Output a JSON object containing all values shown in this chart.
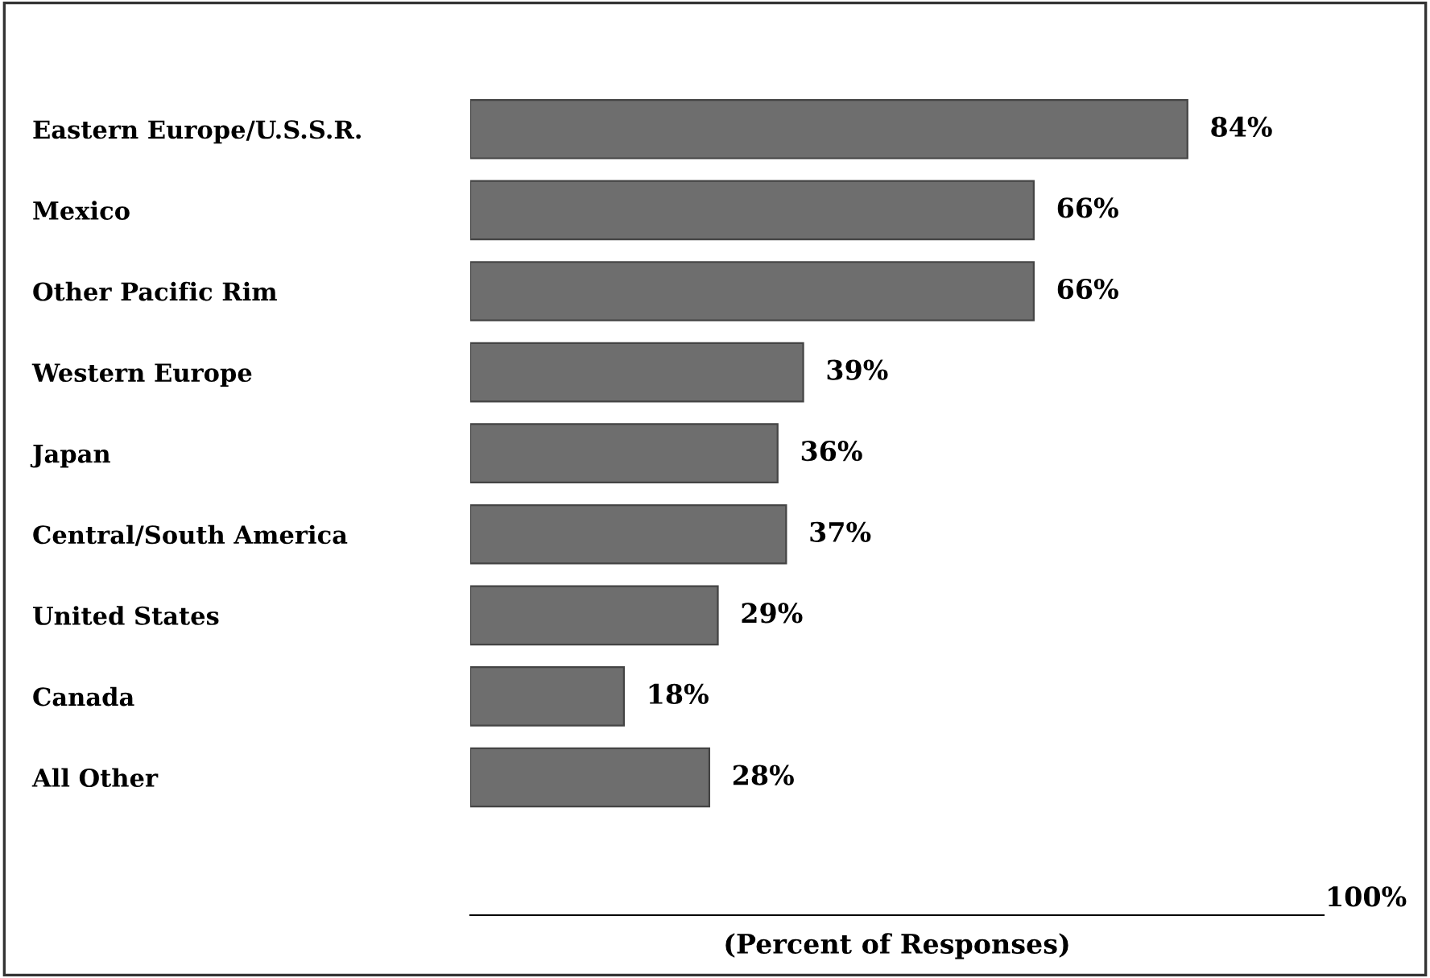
{
  "chart_data": {
    "type": "bar",
    "orientation": "horizontal",
    "xlabel": "(Percent of Responses)",
    "categories": [
      "Eastern Europe/U.S.S.R.",
      "Mexico",
      "Other Pacific Rim",
      "Western Europe",
      "Japan",
      "Central/South America",
      "United States",
      "Canada",
      "All Other"
    ],
    "values": [
      84,
      66,
      66,
      39,
      36,
      37,
      29,
      18,
      28
    ],
    "value_labels": [
      "84%",
      "66%",
      "66%",
      "39%",
      "36%",
      "37%",
      "29%",
      "18%",
      "28%"
    ],
    "color": "#6e6e6e",
    "annotations": [
      "100%"
    ],
    "grid": false
  }
}
